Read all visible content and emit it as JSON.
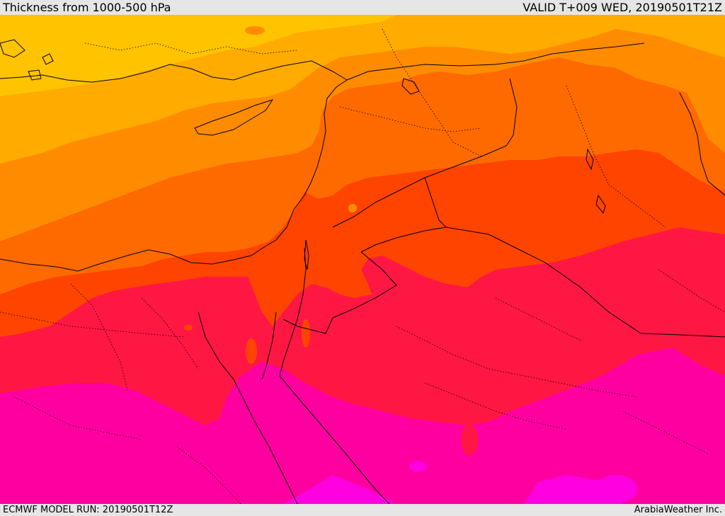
{
  "header": {
    "title": "Thickness from 1000-500 hPa",
    "valid": "VALID T+009 WED, 20190501T21Z"
  },
  "footer": {
    "model_run": "ECMWF MODEL RUN: 20190501T12Z",
    "credit": "ArabiaWeather Inc."
  },
  "colors": {
    "band1": "#ffc300",
    "band2": "#ffab00",
    "band3": "#ff8c00",
    "band4": "#ff6a00",
    "band5": "#ff4400",
    "band6": "#ff1744",
    "band7": "#ff0a6e",
    "band8": "#ff00a0",
    "band9": "#ff00e0",
    "border": "#000000"
  }
}
